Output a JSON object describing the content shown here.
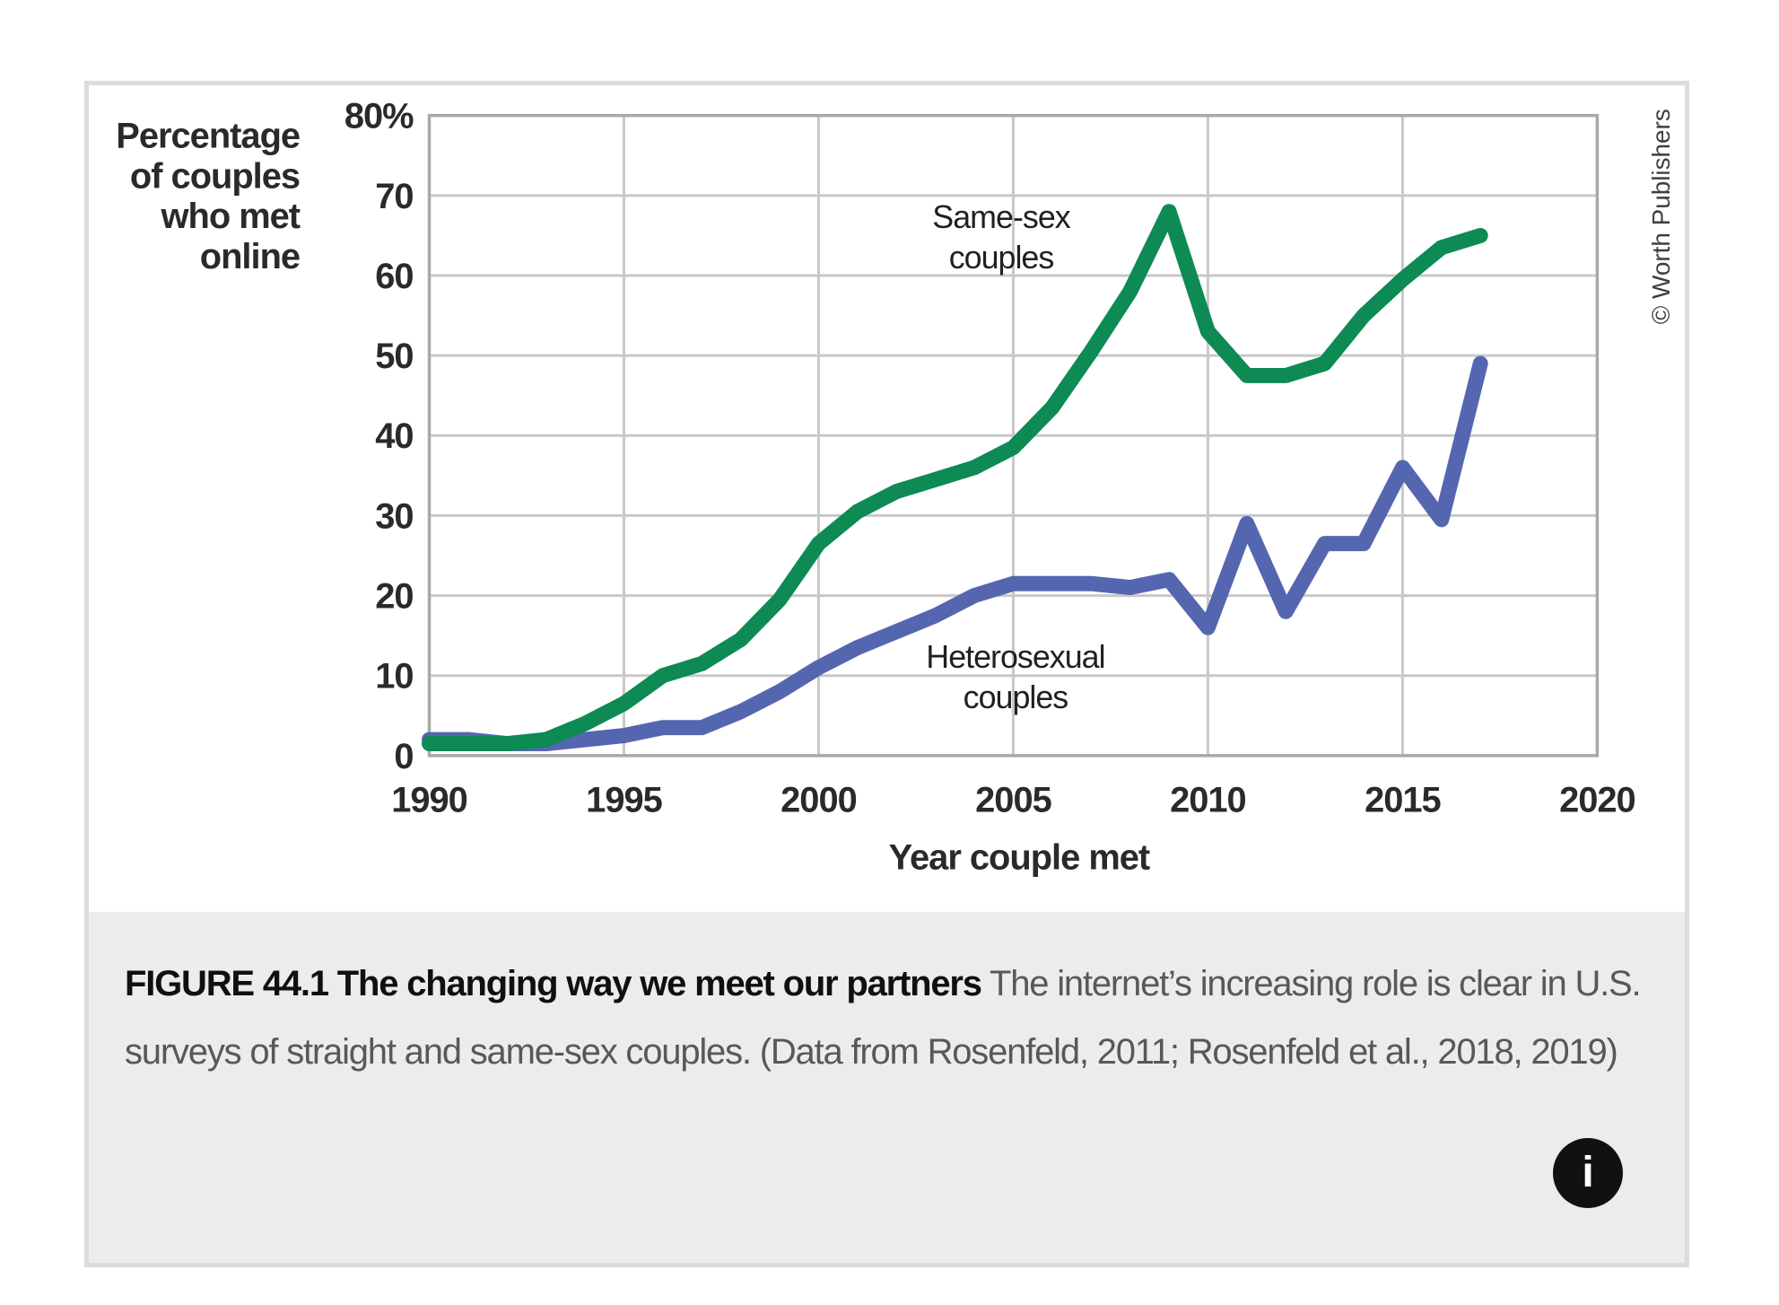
{
  "figure": {
    "caption_title": "FIGURE 44.1 The changing way we meet our partners",
    "caption_body": "The internet’s increasing role is clear in U.S. surveys of straight and same-sex couples. (Data from Rosenfeld, 2011; Rosenfeld et al., 2018, 2019)",
    "credit": "© Worth Publishers",
    "info_glyph": "i"
  },
  "chart_data": {
    "type": "line",
    "title": "",
    "xlabel": "Year couple met",
    "ylabel": "Percentage of couples who met online",
    "ylabel_lines": [
      "Percentage",
      "of couples",
      "who met",
      "online"
    ],
    "xlim": [
      1990,
      2020
    ],
    "ylim": [
      0,
      80
    ],
    "grid": true,
    "legend_position": "inline-annotations",
    "xticks": [
      1990,
      1995,
      2000,
      2005,
      2010,
      2015,
      2020
    ],
    "yticks": [
      {
        "value": 80,
        "label": "80%"
      },
      {
        "value": 70,
        "label": "70"
      },
      {
        "value": 60,
        "label": "60"
      },
      {
        "value": 50,
        "label": "50"
      },
      {
        "value": 40,
        "label": "40"
      },
      {
        "value": 30,
        "label": "30"
      },
      {
        "value": 20,
        "label": "20"
      },
      {
        "value": 10,
        "label": "10"
      },
      {
        "value": 0,
        "label": "0"
      }
    ],
    "x": [
      1990,
      1991,
      1992,
      1993,
      1994,
      1995,
      1996,
      1997,
      1998,
      1999,
      2000,
      2001,
      2002,
      2003,
      2004,
      2005,
      2006,
      2007,
      2008,
      2009,
      2010,
      2011,
      2012,
      2013,
      2014,
      2015,
      2016,
      2017
    ],
    "series": [
      {
        "name": "Same-sex couples",
        "label_lines": [
          "Same-sex",
          "couples"
        ],
        "color": "#0e8a55",
        "values": [
          1.5,
          1.5,
          1.5,
          2,
          4,
          6.5,
          10,
          11.5,
          14.5,
          19.5,
          26.5,
          30.5,
          33,
          34.5,
          36,
          38.5,
          43.5,
          50.5,
          58,
          68,
          53,
          47.5,
          47.5,
          49,
          55,
          59.5,
          63.5,
          65
        ]
      },
      {
        "name": "Heterosexual couples",
        "label_lines": [
          "Heterosexual",
          "couples"
        ],
        "color": "#5566b0",
        "values": [
          2,
          2,
          1.5,
          1.5,
          2,
          2.5,
          3.5,
          3.5,
          5.5,
          8,
          11,
          13.5,
          15.5,
          17.5,
          20,
          21.5,
          21.5,
          21.5,
          21,
          22,
          16,
          29,
          18,
          26.5,
          26.5,
          36,
          29.5,
          49
        ]
      }
    ],
    "colors": {
      "grid": "#c8c8c8",
      "plot_border": "#a9a9a9",
      "text": "#2a2a2a"
    }
  }
}
